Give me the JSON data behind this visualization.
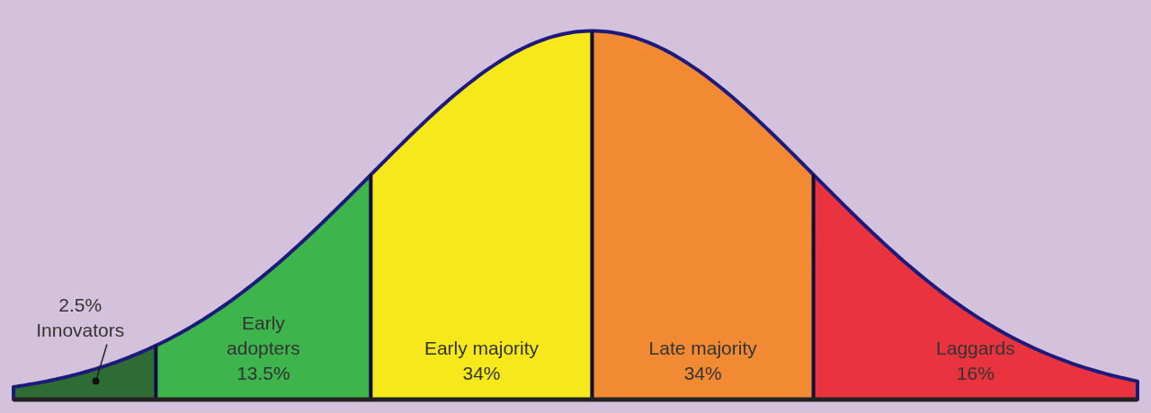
{
  "chart_data": {
    "type": "other",
    "categories": [
      "Innovators",
      "Early adopters",
      "Early majority",
      "Late majority",
      "Laggards"
    ],
    "values": [
      2.5,
      13.5,
      34,
      34,
      16
    ],
    "value_labels": [
      "2.5%",
      "13.5%",
      "34%",
      "34%",
      "16%"
    ],
    "colors": [
      "#2f6b35",
      "#3db54c",
      "#f6e81a",
      "#f28a34",
      "#e9343f"
    ]
  }
}
